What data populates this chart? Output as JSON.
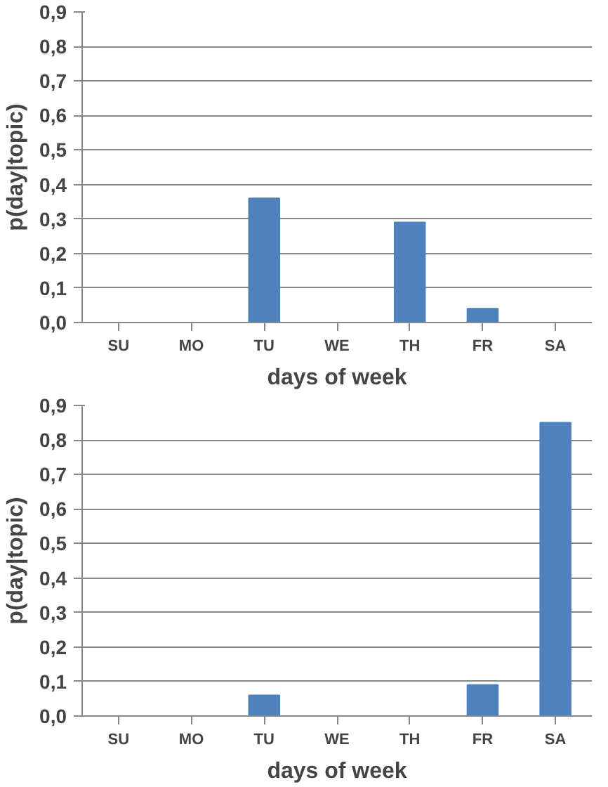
{
  "chart_data": [
    {
      "type": "bar",
      "xlabel": "days of week",
      "ylabel": "p(day|topic)",
      "categories": [
        "SU",
        "MO",
        "TU",
        "WE",
        "TH",
        "FR",
        "SA"
      ],
      "color": "#4f81bd",
      "grid": "y",
      "values": [
        0,
        0,
        0.36,
        0,
        0.29,
        0.04,
        0
      ],
      "ylim": [
        0,
        0.9
      ],
      "yticks": [
        {
          "value": 0,
          "label": "0,0"
        },
        {
          "value": 0.1,
          "label": "0,1"
        },
        {
          "value": 0.2,
          "label": "0,2"
        },
        {
          "value": 0.3,
          "label": "0,3"
        },
        {
          "value": 0.4,
          "label": "0,4"
        },
        {
          "value": 0.5,
          "label": "0,5"
        },
        {
          "value": 0.6,
          "label": "0,6"
        },
        {
          "value": 0.7,
          "label": "0,7"
        },
        {
          "value": 0.8,
          "label": "0,8"
        },
        {
          "value": 0.9,
          "label": "0,9"
        }
      ]
    },
    {
      "type": "bar",
      "xlabel": "days of week",
      "ylabel": "p(day|topic)",
      "categories": [
        "SU",
        "MO",
        "TU",
        "WE",
        "TH",
        "FR",
        "SA"
      ],
      "color": "#4f81bd",
      "grid": "y",
      "values": [
        0,
        0,
        0.06,
        0,
        0,
        0.09,
        0.85
      ],
      "ylim": [
        0,
        0.9
      ],
      "yticks": [
        {
          "value": 0,
          "label": "0,0"
        },
        {
          "value": 0.1,
          "label": "0,1"
        },
        {
          "value": 0.2,
          "label": "0,2"
        },
        {
          "value": 0.3,
          "label": "0,3"
        },
        {
          "value": 0.4,
          "label": "0,4"
        },
        {
          "value": 0.5,
          "label": "0,5"
        },
        {
          "value": 0.6,
          "label": "0,6"
        },
        {
          "value": 0.7,
          "label": "0,7"
        },
        {
          "value": 0.8,
          "label": "0,8"
        },
        {
          "value": 0.9,
          "label": "0,9"
        }
      ]
    }
  ]
}
